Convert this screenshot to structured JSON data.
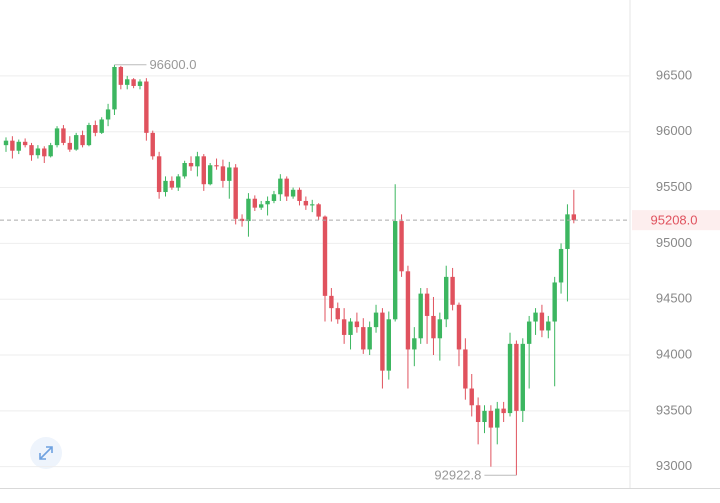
{
  "chart_data": {
    "type": "candlestick",
    "open": [
      95880,
      95920,
      95830,
      95910,
      95880,
      95790,
      95850,
      95780,
      95880,
      96030,
      95900,
      95840,
      95970,
      95880,
      96060,
      95990,
      96110,
      96200,
      96580,
      96420,
      96470,
      96410,
      96450,
      95990,
      95780,
      95460,
      95560,
      95500,
      95600,
      95720,
      95690,
      95780,
      95530,
      95700,
      95690,
      95560,
      95680,
      95220,
      95200,
      95400,
      95320,
      95350,
      95380,
      95440,
      95580,
      95420,
      95480,
      95380,
      95340,
      95350,
      95240,
      94530,
      94420,
      94320,
      94180,
      94300,
      94250,
      94050,
      94250,
      94380,
      93860,
      94320,
      95200,
      94750,
      94050,
      94150,
      94550,
      94350,
      94150,
      94320,
      94700,
      94450,
      94050,
      93700,
      93550,
      93400,
      93500,
      93350,
      93520,
      93480,
      94100,
      93500,
      94100,
      94300,
      94380,
      94220,
      94300,
      94650,
      94950,
      95260
    ],
    "high": [
      95950,
      95960,
      95930,
      95940,
      95900,
      95880,
      95870,
      95900,
      96050,
      96060,
      95960,
      95990,
      96010,
      96080,
      96100,
      96130,
      96250,
      96600,
      96590,
      96500,
      96480,
      96470,
      96480,
      96010,
      95820,
      95600,
      95600,
      95620,
      95740,
      95780,
      95820,
      95800,
      95720,
      95760,
      95750,
      95730,
      95710,
      95260,
      95450,
      95430,
      95380,
      95420,
      95470,
      95620,
      95600,
      95500,
      95500,
      95420,
      95390,
      95360,
      95250,
      94600,
      94470,
      94420,
      94330,
      94380,
      94330,
      94300,
      94450,
      94420,
      94390,
      95530,
      95260,
      94800,
      94250,
      94600,
      94600,
      94520,
      94380,
      94800,
      94780,
      94470,
      94150,
      93830,
      93620,
      93550,
      93550,
      93580,
      93580,
      94200,
      94130,
      94150,
      94350,
      94420,
      94450,
      94350,
      94700,
      95000,
      95350,
      95480
    ],
    "low": [
      95820,
      95760,
      95800,
      95860,
      95740,
      95760,
      95720,
      95770,
      95860,
      95880,
      95820,
      95830,
      95860,
      95870,
      95960,
      95980,
      96050,
      96150,
      96380,
      96380,
      96390,
      96380,
      95920,
      95750,
      95400,
      95420,
      95480,
      95470,
      95580,
      95650,
      95600,
      95470,
      95520,
      95660,
      95500,
      95400,
      95170,
      95150,
      95060,
      95290,
      95300,
      95250,
      95360,
      95380,
      95380,
      95400,
      95340,
      95300,
      95280,
      95210,
      94300,
      94300,
      94280,
      94100,
      94050,
      94200,
      94010,
      94000,
      94200,
      93700,
      93780,
      94300,
      94700,
      93700,
      93900,
      94100,
      94100,
      94000,
      93950,
      94250,
      94400,
      93900,
      93600,
      93450,
      93200,
      93300,
      93000,
      93200,
      93400,
      93450,
      92922.8,
      93400,
      93700,
      94180,
      94160,
      94150,
      93720,
      94550,
      94480,
      95180
    ],
    "close": [
      95920,
      95830,
      95910,
      95880,
      95790,
      95850,
      95780,
      95880,
      96030,
      95900,
      95840,
      95970,
      95880,
      96060,
      95990,
      96110,
      96200,
      96580,
      96420,
      96470,
      96410,
      96450,
      95990,
      95780,
      95460,
      95560,
      95500,
      95600,
      95720,
      95690,
      95780,
      95530,
      95700,
      95690,
      95560,
      95680,
      95220,
      95200,
      95400,
      95320,
      95350,
      95380,
      95440,
      95580,
      95420,
      95480,
      95380,
      95340,
      95350,
      95240,
      94530,
      94420,
      94320,
      94180,
      94300,
      94250,
      94050,
      94250,
      94380,
      93860,
      94320,
      95200,
      94750,
      94050,
      94150,
      94550,
      94350,
      94150,
      94320,
      94700,
      94450,
      94050,
      93700,
      93550,
      93400,
      93500,
      93350,
      93520,
      93480,
      94100,
      93500,
      94100,
      94300,
      94380,
      94220,
      94300,
      94650,
      94950,
      95260,
      95208
    ],
    "up_color": "#3cb660",
    "down_color": "#e0525e",
    "ylim": [
      92800,
      97180
    ],
    "yticks": [
      93000,
      93500,
      94000,
      94500,
      95000,
      95500,
      96000,
      96500
    ],
    "grid": true,
    "max_label": {
      "value": 96600,
      "label": "96600.0"
    },
    "min_label": {
      "value": 92922.8,
      "label": "92922.8"
    },
    "last_price": {
      "value": 95208,
      "label": "95208.0"
    }
  }
}
